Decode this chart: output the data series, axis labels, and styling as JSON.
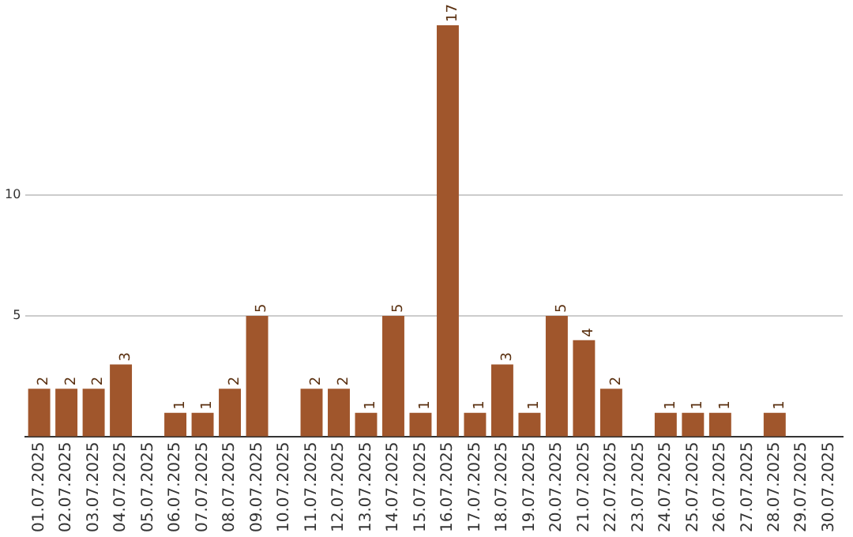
{
  "chart_data": {
    "type": "bar",
    "categories": [
      "01.07.2025",
      "02.07.2025",
      "03.07.2025",
      "04.07.2025",
      "05.07.2025",
      "06.07.2025",
      "07.07.2025",
      "08.07.2025",
      "09.07.2025",
      "10.07.2025",
      "11.07.2025",
      "12.07.2025",
      "13.07.2025",
      "14.07.2025",
      "15.07.2025",
      "16.07.2025",
      "17.07.2025",
      "18.07.2025",
      "19.07.2025",
      "20.07.2025",
      "21.07.2025",
      "22.07.2025",
      "23.07.2025",
      "24.07.2025",
      "25.07.2025",
      "26.07.2025",
      "27.07.2025",
      "28.07.2025",
      "29.07.2025",
      "30.07.2025"
    ],
    "values": [
      2,
      2,
      2,
      3,
      0,
      1,
      1,
      2,
      5,
      0,
      2,
      2,
      1,
      5,
      1,
      17,
      1,
      3,
      1,
      5,
      4,
      2,
      0,
      1,
      1,
      1,
      0,
      1,
      0,
      0
    ],
    "value_labels": [
      "2",
      "2",
      "2",
      "3",
      null,
      "1",
      "1",
      "2",
      "5",
      null,
      "2",
      "2",
      "1",
      "5",
      "1",
      "17",
      "1",
      "3",
      "1",
      "5",
      "4",
      "2",
      null,
      "1",
      "1",
      "1",
      null,
      "1",
      null,
      null
    ],
    "color": "#a0562c",
    "ylim": [
      0,
      17
    ],
    "yticks": [
      {
        "value": 0,
        "label": null
      },
      5,
      10
    ],
    "grid": "y",
    "legend": false
  }
}
